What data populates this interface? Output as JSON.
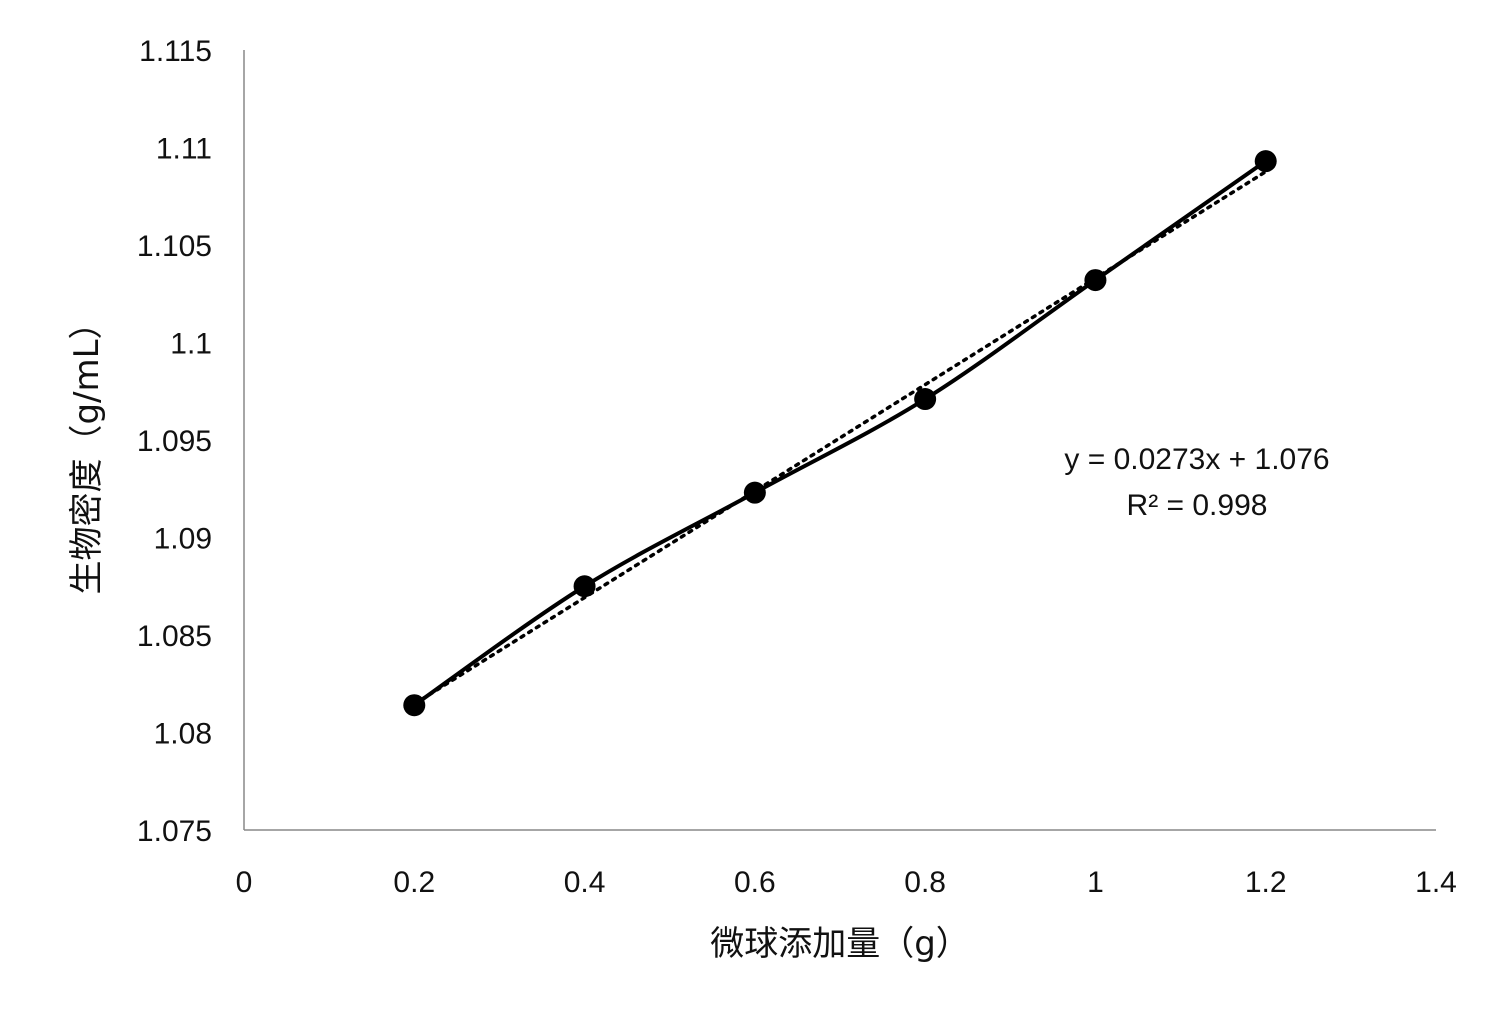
{
  "chart_data": {
    "type": "scatter",
    "xlabel": "微球添加量（g）",
    "ylabel": "生物密度（g/mL）",
    "xlim": [
      0,
      1.4
    ],
    "ylim": [
      1.075,
      1.115
    ],
    "x_ticks": [
      "0",
      "0.2",
      "0.4",
      "0.6",
      "0.8",
      "1",
      "1.2",
      "1.4"
    ],
    "y_ticks": [
      "1.075",
      "1.08",
      "1.085",
      "1.09",
      "1.095",
      "1.1",
      "1.105",
      "1.11",
      "1.115"
    ],
    "grid": false,
    "series": [
      {
        "x": [
          0.2,
          0.4,
          0.6,
          0.8,
          1.0,
          1.2
        ],
        "y": [
          1.0814,
          1.0875,
          1.0923,
          1.0971,
          1.1032,
          1.1093
        ],
        "line": "smooth-solid",
        "marker": "filled-circle",
        "color": "#000000"
      }
    ],
    "trendline": {
      "type": "linear",
      "slope": 0.0273,
      "intercept": 1.076,
      "style": "dotted",
      "x_range": [
        0.2,
        1.2
      ],
      "equation_text": "y = 0.0273x + 1.076",
      "r2_text": "R² = 0.998"
    }
  }
}
